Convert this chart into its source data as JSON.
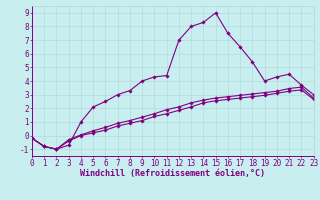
{
  "xlabel": "Windchill (Refroidissement éolien,°C)",
  "background_color": "#c8eef0",
  "line_color": "#800080",
  "grid_color": "#b0d8d8",
  "x_values": [
    0,
    1,
    2,
    3,
    4,
    5,
    6,
    7,
    8,
    9,
    10,
    11,
    12,
    13,
    14,
    15,
    16,
    17,
    18,
    19,
    20,
    21,
    22,
    23
  ],
  "line1_y": [
    -0.2,
    -0.8,
    -1.0,
    -0.7,
    1.0,
    2.1,
    2.5,
    3.0,
    3.3,
    4.0,
    4.3,
    4.4,
    7.0,
    8.0,
    8.3,
    9.0,
    7.5,
    6.5,
    5.4,
    4.0,
    4.3,
    4.5,
    3.7,
    3.0
  ],
  "line2_y": [
    -0.2,
    -0.8,
    -1.0,
    -0.4,
    0.0,
    0.2,
    0.4,
    0.7,
    0.9,
    1.1,
    1.4,
    1.6,
    1.85,
    2.1,
    2.4,
    2.55,
    2.65,
    2.75,
    2.85,
    2.95,
    3.1,
    3.25,
    3.35,
    2.65
  ],
  "line3_y": [
    -0.2,
    -0.8,
    -1.0,
    -0.3,
    0.05,
    0.35,
    0.6,
    0.9,
    1.1,
    1.35,
    1.6,
    1.9,
    2.1,
    2.4,
    2.6,
    2.75,
    2.85,
    2.95,
    3.05,
    3.15,
    3.25,
    3.45,
    3.55,
    2.75
  ],
  "xlim": [
    0,
    23
  ],
  "ylim": [
    -1.5,
    9.5
  ],
  "yticks": [
    -1,
    0,
    1,
    2,
    3,
    4,
    5,
    6,
    7,
    8,
    9
  ],
  "xticks": [
    0,
    1,
    2,
    3,
    4,
    5,
    6,
    7,
    8,
    9,
    10,
    11,
    12,
    13,
    14,
    15,
    16,
    17,
    18,
    19,
    20,
    21,
    22,
    23
  ],
  "marker": "D",
  "marker_size": 1.8,
  "line_width": 0.8,
  "font_size": 5.5,
  "xlabel_fontsize": 6.0
}
